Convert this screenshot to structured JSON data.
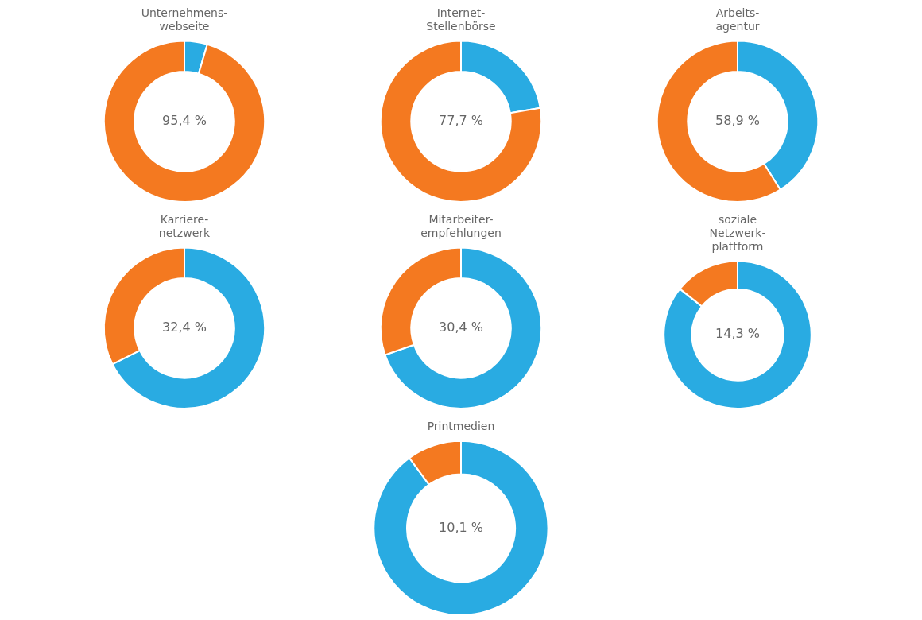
{
  "chart_data": [
    {
      "type": "doughnut",
      "title": "Unternehmens-\nwebseite",
      "values": [
        4.6,
        95.4
      ],
      "value_labels": [
        null,
        "95,4 %"
      ],
      "colors": [
        "#29ABE2",
        "#F47920"
      ]
    },
    {
      "type": "doughnut",
      "title": "Internet-\nStellenbörse",
      "values": [
        22.3,
        77.7
      ],
      "value_labels": [
        null,
        "77,7 %"
      ],
      "colors": [
        "#29ABE2",
        "#F47920"
      ]
    },
    {
      "type": "doughnut",
      "title": "Arbeits-\nagentur",
      "values": [
        41.1,
        58.9
      ],
      "value_labels": [
        null,
        "58,9 %"
      ],
      "colors": [
        "#29ABE2",
        "#F47920"
      ]
    },
    {
      "type": "doughnut",
      "title": "Karriere-\nnetzwerk",
      "values": [
        67.6,
        32.4
      ],
      "value_labels": [
        null,
        "32,4 %"
      ],
      "colors": [
        "#29ABE2",
        "#F47920"
      ]
    },
    {
      "type": "doughnut",
      "title": "Mitarbeiter-\nempfehlungen",
      "values": [
        69.6,
        30.4
      ],
      "value_labels": [
        null,
        "30,4 %"
      ],
      "colors": [
        "#29ABE2",
        "#F47920"
      ]
    },
    {
      "type": "doughnut",
      "title": "soziale\nNetzwerk-\nplattform",
      "values": [
        85.7,
        14.3
      ],
      "value_labels": [
        null,
        "14,3 %"
      ],
      "colors": [
        "#29ABE2",
        "#F47920"
      ]
    },
    {
      "type": "doughnut",
      "title": "Printmedien",
      "values": [
        89.9,
        10.1
      ],
      "value_labels": [
        null,
        "10,1 %"
      ],
      "colors": [
        "#29ABE2",
        "#F47920"
      ]
    }
  ]
}
